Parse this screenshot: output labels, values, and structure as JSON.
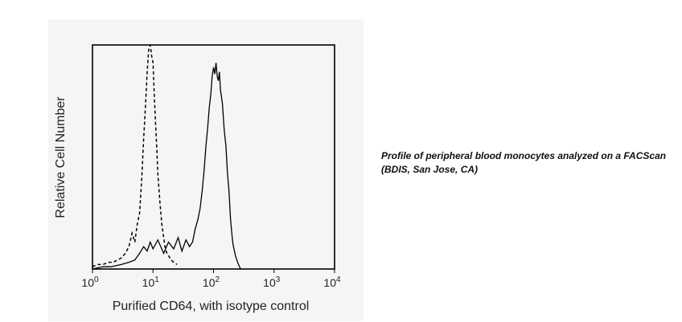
{
  "chart_data": {
    "type": "line",
    "xscale": "log",
    "xlim": [
      1,
      10000
    ],
    "ylim": [
      0,
      100
    ],
    "grid": false,
    "xlabel": "Purified CD64, with isotype control",
    "ylabel": "Relative Cell Number",
    "xticks": [
      {
        "value": 1,
        "base": "10",
        "exp": "0"
      },
      {
        "value": 10,
        "base": "10",
        "exp": "1"
      },
      {
        "value": 100,
        "base": "10",
        "exp": "2"
      },
      {
        "value": 1000,
        "base": "10",
        "exp": "3"
      },
      {
        "value": 10000,
        "base": "10",
        "exp": "4"
      }
    ],
    "series": [
      {
        "style": "dashed",
        "color": "#000000",
        "x": [
          1.0,
          1.2,
          1.5,
          1.8,
          2.2,
          2.6,
          3.0,
          3.5,
          4.0,
          4.5,
          5.0,
          5.5,
          6.0,
          6.5,
          7.0,
          7.5,
          8.0,
          8.5,
          9.0,
          9.5,
          10.0,
          10.5,
          11.0,
          11.5,
          12.0,
          13.0,
          14.0,
          15.0,
          16.0,
          17.0,
          18.0,
          20.0,
          22.0,
          25.0
        ],
        "y": [
          1,
          2,
          2,
          3,
          3,
          4,
          5,
          7,
          10,
          16,
          12,
          20,
          25,
          40,
          58,
          72,
          88,
          98,
          100,
          95,
          92,
          78,
          65,
          55,
          43,
          30,
          20,
          14,
          9,
          7,
          6,
          4,
          3,
          2
        ]
      },
      {
        "style": "solid",
        "color": "#000000",
        "x": [
          1.0,
          1.5,
          2.0,
          3.0,
          4.0,
          5.0,
          6.0,
          7.0,
          8.0,
          9.0,
          10.0,
          12.0,
          15.0,
          18.0,
          22.0,
          26.0,
          30.0,
          35.0,
          40.0,
          45.0,
          50.0,
          55.0,
          60.0,
          65.0,
          70.0,
          75.0,
          80.0,
          85.0,
          90.0,
          95.0,
          100.0,
          105.0,
          110.0,
          115.0,
          120.0,
          125.0,
          130.0,
          140.0,
          150.0,
          160.0,
          170.0,
          180.0,
          190.0,
          200.0,
          210.0,
          230.0,
          250.0,
          280.0
        ],
        "y": [
          0,
          1,
          1,
          2,
          3,
          4,
          7,
          10,
          8,
          12,
          9,
          13,
          7,
          12,
          9,
          14,
          8,
          13,
          10,
          12,
          18,
          22,
          27,
          35,
          44,
          55,
          63,
          72,
          78,
          86,
          90,
          87,
          92,
          86,
          84,
          88,
          80,
          74,
          62,
          55,
          43,
          35,
          23,
          16,
          11,
          6,
          3,
          0
        ]
      }
    ]
  },
  "caption": "Profile of peripheral blood monocytes analyzed on a FACScan (BDIS, San Jose, CA)"
}
